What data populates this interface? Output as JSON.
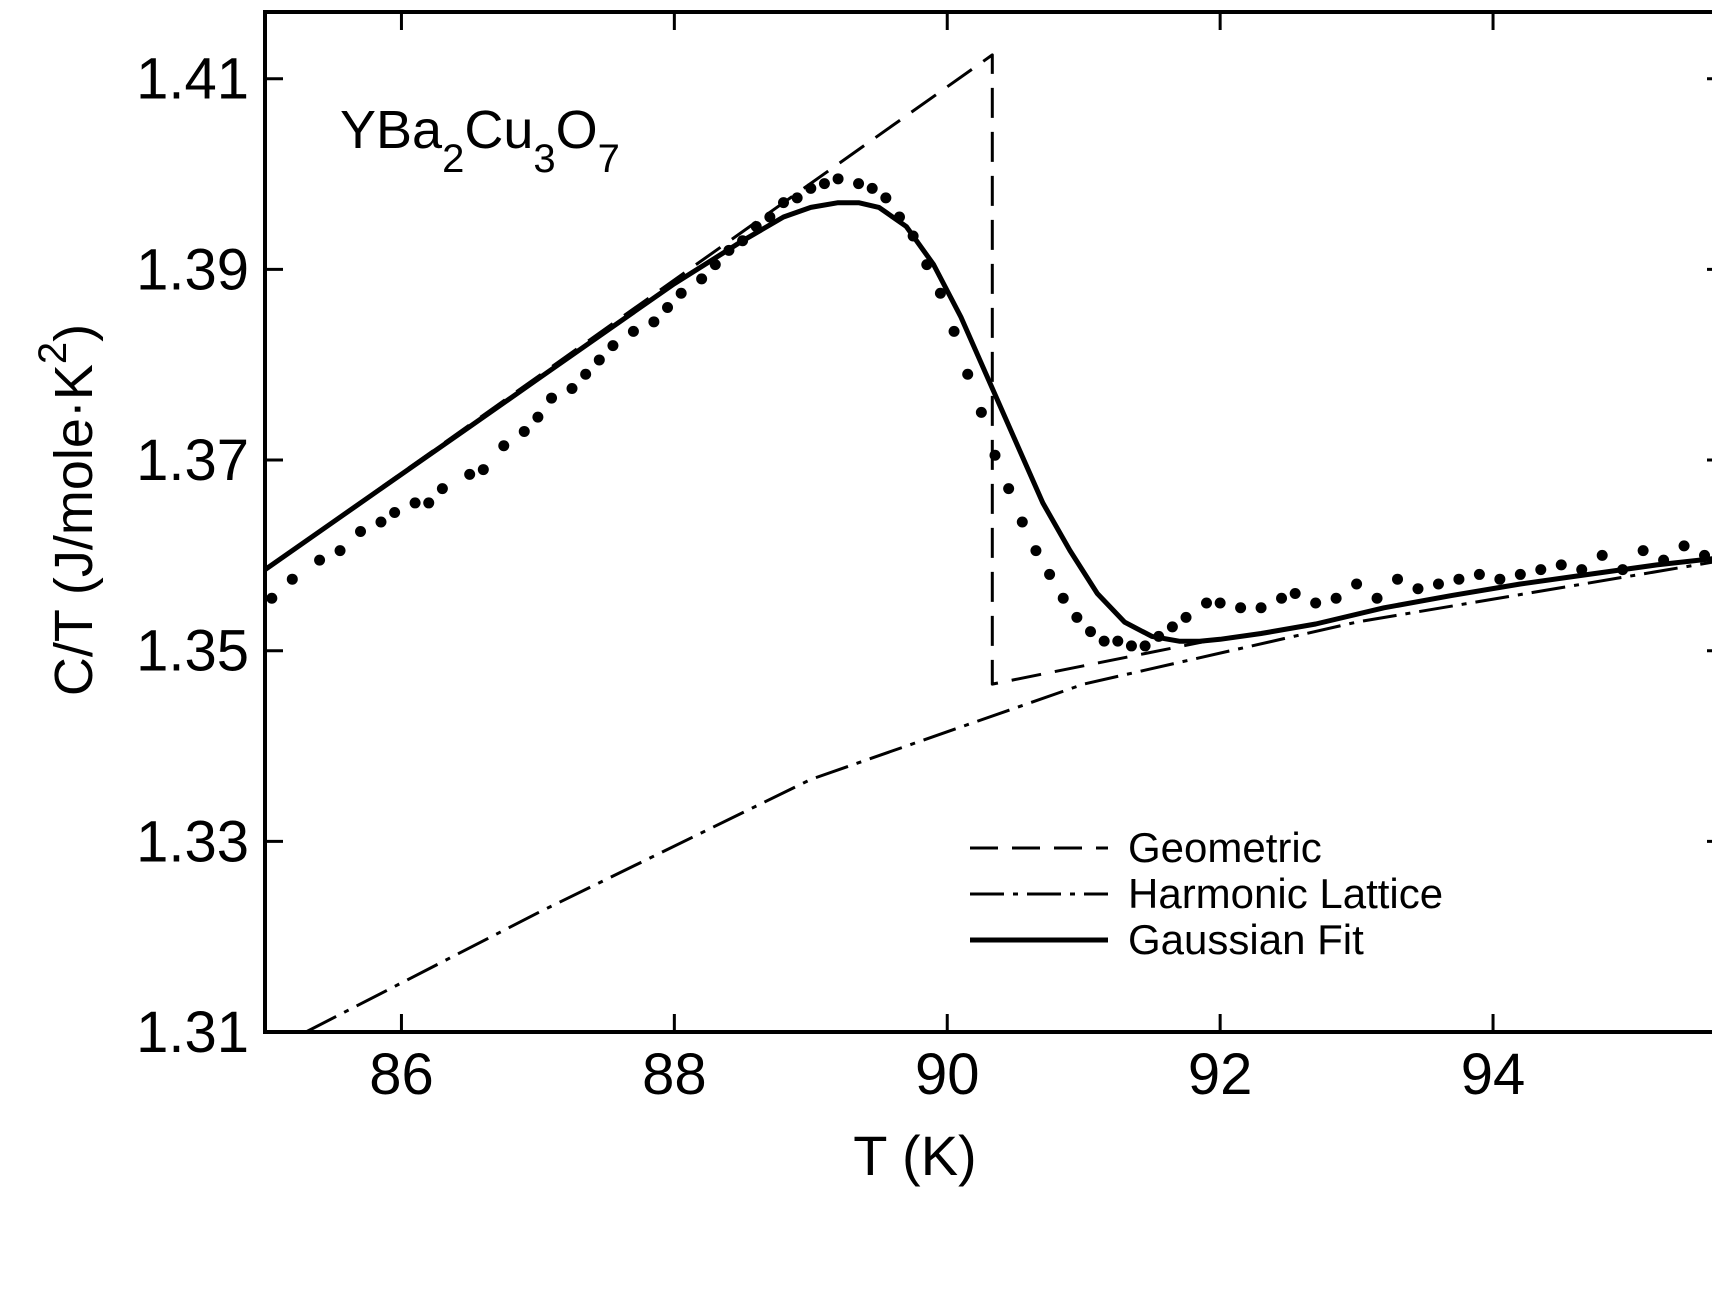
{
  "chart_data": {
    "type": "line",
    "annotation": {
      "base": "YBa",
      "sub1": "2",
      "mid": "Cu",
      "sub2": "3",
      "end": "O",
      "sub3": "7"
    },
    "xlabel": "T  (K)",
    "ylabel": "C/T  (J/mole·K",
    "ylabel_sup": "2",
    "ylabel_close": ")",
    "xlim": [
      85,
      95.7
    ],
    "ylim": [
      1.31,
      1.417
    ],
    "xticks": [
      86,
      88,
      90,
      92,
      94
    ],
    "xtick_labels": [
      "86",
      "88",
      "90",
      "92",
      "94"
    ],
    "yticks": [
      1.31,
      1.33,
      1.35,
      1.37,
      1.39,
      1.41
    ],
    "ytick_labels": [
      "1.31",
      "1.33",
      "1.35",
      "1.37",
      "1.39",
      "1.41"
    ],
    "legend_position": "lower-right",
    "series": [
      {
        "name": "Geometric",
        "style": "dashed",
        "x": [
          85.0,
          90.33,
          90.33,
          91.9
        ],
        "y": [
          1.3585,
          1.4125,
          1.3465,
          1.351
        ]
      },
      {
        "name": "Harmonic Lattice",
        "style": "dashdot",
        "x": [
          85.3,
          87.0,
          89.0,
          91.0,
          93.0,
          95.7
        ],
        "y": [
          1.31,
          1.3225,
          1.3365,
          1.3465,
          1.353,
          1.3595
        ]
      },
      {
        "name": "Gaussian Fit",
        "style": "solid",
        "x": [
          85.0,
          85.5,
          86.0,
          86.5,
          87.0,
          87.5,
          88.0,
          88.5,
          88.8,
          89.0,
          89.2,
          89.35,
          89.5,
          89.7,
          89.9,
          90.1,
          90.3,
          90.5,
          90.7,
          90.9,
          91.1,
          91.3,
          91.5,
          91.7,
          91.85,
          92.0,
          92.3,
          92.7,
          93.2,
          93.7,
          94.2,
          94.7,
          95.2,
          95.7
        ],
        "y": [
          1.3585,
          1.3635,
          1.3685,
          1.3735,
          1.3785,
          1.3835,
          1.3885,
          1.393,
          1.3955,
          1.3965,
          1.397,
          1.397,
          1.3965,
          1.3945,
          1.3905,
          1.385,
          1.3785,
          1.372,
          1.3655,
          1.3605,
          1.356,
          1.353,
          1.3515,
          1.351,
          1.351,
          1.3512,
          1.3518,
          1.3528,
          1.3545,
          1.3558,
          1.357,
          1.358,
          1.359,
          1.3598
        ]
      },
      {
        "name": "",
        "style": "points",
        "x": [
          85.05,
          85.2,
          85.4,
          85.55,
          85.7,
          85.85,
          85.95,
          86.1,
          86.2,
          86.3,
          86.5,
          86.6,
          86.75,
          86.9,
          87.0,
          87.1,
          87.25,
          87.35,
          87.45,
          87.55,
          87.7,
          87.85,
          87.95,
          88.05,
          88.2,
          88.3,
          88.4,
          88.5,
          88.6,
          88.7,
          88.8,
          88.9,
          89.0,
          89.1,
          89.2,
          89.35,
          89.45,
          89.55,
          89.65,
          89.75,
          89.85,
          89.95,
          90.05,
          90.15,
          90.25,
          90.35,
          90.45,
          90.55,
          90.65,
          90.75,
          90.85,
          90.95,
          91.05,
          91.15,
          91.25,
          91.35,
          91.45,
          91.55,
          91.65,
          91.75,
          91.9,
          92.0,
          92.15,
          92.3,
          92.45,
          92.55,
          92.7,
          92.85,
          93.0,
          93.15,
          93.3,
          93.45,
          93.6,
          93.75,
          93.9,
          94.05,
          94.2,
          94.35,
          94.5,
          94.65,
          94.8,
          94.95,
          95.1,
          95.25,
          95.4,
          95.55,
          95.7
        ],
        "y": [
          1.3555,
          1.3575,
          1.3595,
          1.3605,
          1.3625,
          1.3635,
          1.3645,
          1.3655,
          1.3655,
          1.367,
          1.3685,
          1.369,
          1.3715,
          1.373,
          1.3745,
          1.3765,
          1.3775,
          1.379,
          1.3805,
          1.382,
          1.3835,
          1.3845,
          1.386,
          1.3875,
          1.389,
          1.3905,
          1.392,
          1.393,
          1.3945,
          1.3955,
          1.397,
          1.3975,
          1.3985,
          1.399,
          1.3995,
          1.399,
          1.3985,
          1.3975,
          1.3955,
          1.3935,
          1.3905,
          1.3875,
          1.3835,
          1.379,
          1.375,
          1.3705,
          1.367,
          1.3635,
          1.3605,
          1.358,
          1.3555,
          1.3535,
          1.352,
          1.351,
          1.351,
          1.3505,
          1.3505,
          1.3515,
          1.3525,
          1.3535,
          1.355,
          1.355,
          1.3545,
          1.3545,
          1.3555,
          1.356,
          1.355,
          1.3555,
          1.357,
          1.3555,
          1.3575,
          1.3565,
          1.357,
          1.3575,
          1.358,
          1.3575,
          1.358,
          1.3585,
          1.359,
          1.3585,
          1.36,
          1.3585,
          1.3605,
          1.3595,
          1.361,
          1.36,
          1.361
        ]
      }
    ]
  }
}
